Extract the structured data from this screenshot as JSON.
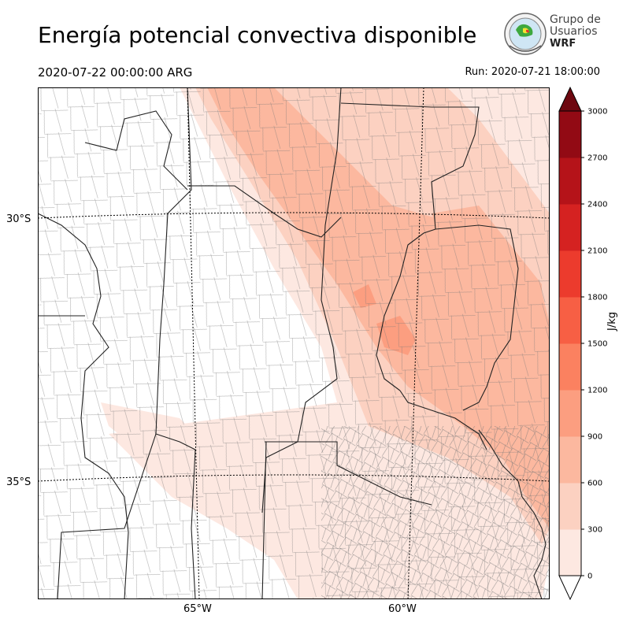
{
  "header": {
    "title": "Energía potencial convectiva disponible",
    "valid_time": "2020-07-22 00:00:00 ARG",
    "run_time": "Run: 2020-07-21 18:00:00"
  },
  "logo": {
    "line1": "Grupo de",
    "line2": "Usuarios",
    "line3": "WRF"
  },
  "axes": {
    "lat_labels": [
      "30°S",
      "35°S"
    ],
    "lon_labels": [
      "65°W",
      "60°W"
    ]
  },
  "colorbar": {
    "unit": "J/kg",
    "ticks": [
      "0",
      "300",
      "600",
      "900",
      "1200",
      "1500",
      "1800",
      "2100",
      "2400",
      "2700",
      "3000"
    ],
    "colors": [
      "#fde8e1",
      "#fcd1c1",
      "#fcb89f",
      "#fc9e80",
      "#fb8160",
      "#f75f44",
      "#ec3b2d",
      "#d52221",
      "#b51319",
      "#920a14",
      "#6e0810"
    ]
  }
}
